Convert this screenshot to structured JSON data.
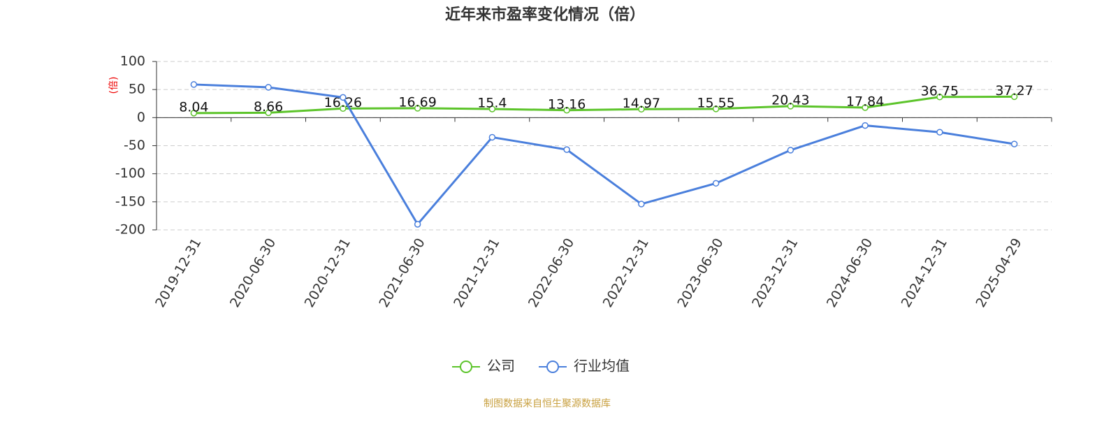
{
  "chart_data": {
    "type": "line",
    "title": "近年来市盈率变化情况（倍）",
    "y_label": "(倍)",
    "source": "制图数据来自恒生聚源数据库",
    "categories": [
      "2019-12-31",
      "2020-06-30",
      "2020-12-31",
      "2021-06-30",
      "2021-12-31",
      "2022-06-30",
      "2022-12-31",
      "2023-06-30",
      "2023-12-31",
      "2024-06-30",
      "2024-12-31",
      "2025-04-29"
    ],
    "series": [
      {
        "name": "公司",
        "color": "#5cc42a",
        "values": [
          8.04,
          8.66,
          16.26,
          16.69,
          15.4,
          13.16,
          14.97,
          15.55,
          20.43,
          17.84,
          36.75,
          37.27
        ]
      },
      {
        "name": "行业均值",
        "color": "#4a7fdc",
        "values": [
          59,
          54,
          36,
          -190,
          -35,
          -57,
          -154,
          -117,
          -58,
          -14,
          -26,
          -47
        ]
      }
    ],
    "ylim": [
      -200,
      100
    ],
    "yticks": [
      100,
      50,
      0,
      -50,
      -100,
      -150,
      -200
    ],
    "grid": true
  }
}
